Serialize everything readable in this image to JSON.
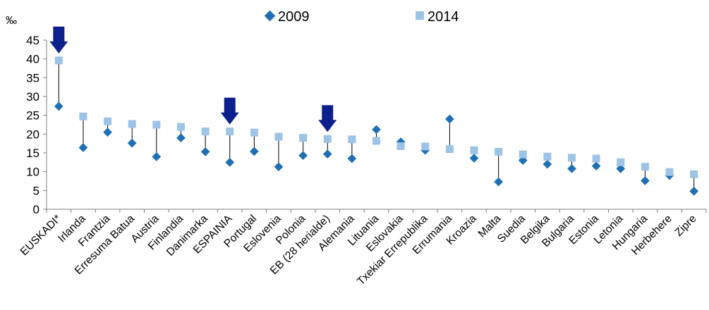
{
  "chart_data": {
    "type": "scatter",
    "ylabel": "‰",
    "ylim": [
      0,
      45
    ],
    "yticks": [
      0,
      5,
      10,
      15,
      20,
      25,
      30,
      35,
      40,
      45
    ],
    "grid": false,
    "legend_position": "top-center",
    "categories": [
      "EUSKADI*",
      "Irlanda",
      "Frantzia",
      "Erresuma Batua",
      "Austria",
      "Finlandia",
      "Danimarka",
      "ESPAINIA",
      "Portugal",
      "Eslovenia",
      "Polonia",
      "EB (28 herialde)",
      "Alemania",
      "Lituania",
      "Eslovakia",
      "Txekiar Errepublika",
      "Errumania",
      "Kroazia",
      "Malta",
      "Suedia",
      "Belgika",
      "Bulgaria",
      "Estonia",
      "Letonia",
      "Hungaria",
      "Herbehere",
      "Zipre"
    ],
    "series": [
      {
        "name": "2009",
        "marker": "diamond",
        "color": "#1f6fb5",
        "values": [
          27.4,
          16.4,
          20.5,
          17.6,
          14.0,
          19.0,
          15.3,
          12.5,
          15.4,
          11.3,
          14.3,
          14.7,
          13.5,
          21.2,
          17.9,
          15.7,
          24.0,
          13.6,
          7.3,
          13.0,
          12.0,
          10.8,
          11.5,
          10.8,
          7.6,
          9.0,
          4.8
        ]
      },
      {
        "name": "2014",
        "marker": "square",
        "color": "#9dc3e6",
        "values": [
          39.6,
          24.7,
          23.4,
          22.7,
          22.5,
          21.9,
          20.7,
          20.7,
          20.4,
          19.3,
          19.0,
          18.7,
          18.6,
          18.2,
          16.8,
          16.7,
          16.0,
          15.7,
          15.3,
          14.6,
          14.0,
          13.7,
          13.5,
          12.5,
          11.3,
          9.9,
          9.3
        ]
      }
    ],
    "highlight_arrows": [
      "EUSKADI*",
      "ESPAINIA",
      "EB (28 herialde)"
    ],
    "colors": {
      "arrow": "#0c1f8c",
      "connector": "#000000",
      "axis": "#808080"
    }
  }
}
